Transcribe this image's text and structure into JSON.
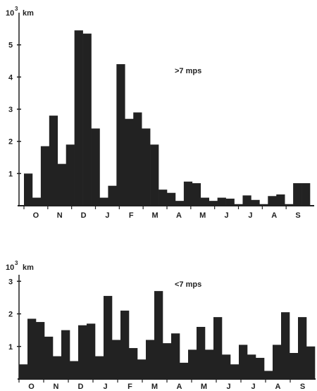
{
  "chart_data": [
    {
      "type": "bar",
      "annotation": ">7 mps",
      "yunit_base": "10",
      "yunit_exp": "3",
      "yunit_label": "km",
      "ylim": [
        0,
        6
      ],
      "yticks": [
        1,
        2,
        3,
        4,
        5
      ],
      "grid": false,
      "month_labels": [
        "O",
        "N",
        "D",
        "J",
        "F",
        "M",
        "A",
        "M",
        "J",
        "J",
        "A",
        "S"
      ],
      "values": [
        1.0,
        0.25,
        1.85,
        2.8,
        1.3,
        1.9,
        5.45,
        5.35,
        2.4,
        0.25,
        0.62,
        4.4,
        2.7,
        2.9,
        2.4,
        1.9,
        0.5,
        0.4,
        0.15,
        0.75,
        0.7,
        0.25,
        0.15,
        0.25,
        0.22,
        0.05,
        0.32,
        0.18,
        0.05,
        0.3,
        0.35,
        0.05,
        0.7,
        0.7
      ]
    },
    {
      "type": "bar",
      "annotation": "<7 mps",
      "yunit_base": "10",
      "yunit_exp": "3",
      "yunit_label": "km",
      "ylim": [
        0,
        3.2
      ],
      "yticks": [
        1,
        2,
        3
      ],
      "grid": false,
      "month_labels": [
        "O",
        "N",
        "D",
        "J",
        "F",
        "M",
        "A",
        "M",
        "J",
        "J",
        "A",
        "S"
      ],
      "values": [
        0.45,
        1.85,
        1.75,
        1.3,
        0.7,
        1.5,
        0.55,
        1.65,
        1.7,
        0.7,
        2.55,
        1.2,
        2.1,
        0.95,
        0.6,
        1.2,
        2.7,
        1.1,
        1.4,
        0.5,
        0.9,
        1.6,
        0.9,
        1.9,
        0.75,
        0.45,
        1.05,
        0.75,
        0.65,
        0.25,
        1.05,
        2.05,
        0.8,
        1.9,
        1.0
      ]
    }
  ]
}
